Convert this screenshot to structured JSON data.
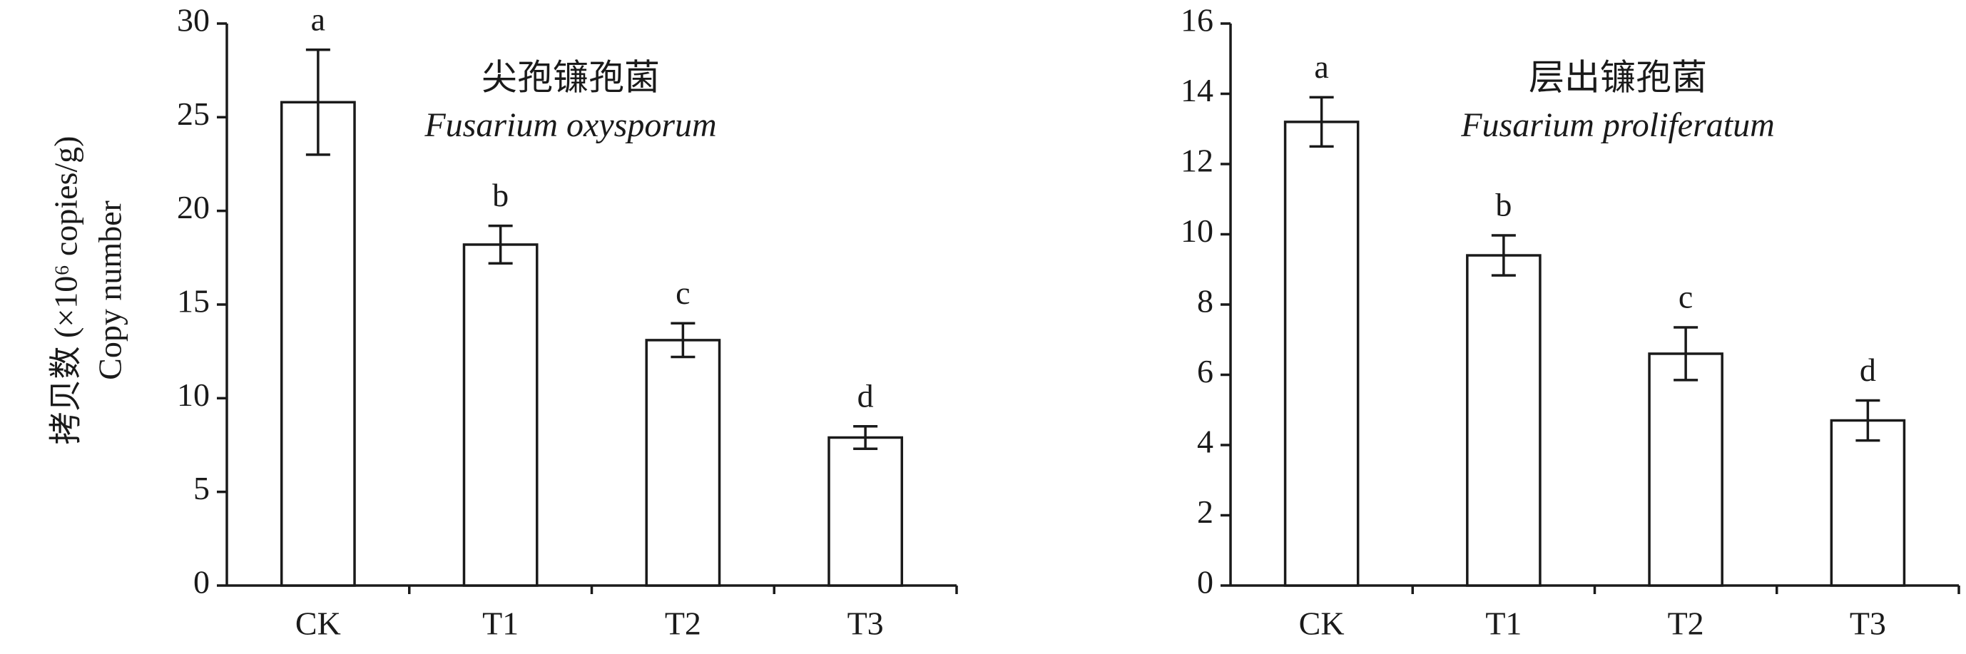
{
  "chart_data": [
    {
      "type": "bar",
      "title": "尖孢镰孢菌",
      "subtitle": "Fusarium oxysporum",
      "ylabel": [
        "拷贝数 (×10⁶ copies/g)",
        "Copy number"
      ],
      "categories": [
        "CK",
        "T1",
        "T2",
        "T3"
      ],
      "values": [
        25.8,
        18.2,
        13.1,
        7.9
      ],
      "errors": [
        2.8,
        1.0,
        0.9,
        0.6
      ],
      "significance": [
        "a",
        "b",
        "c",
        "d"
      ],
      "color": "#ffffff",
      "ylim": [
        0,
        30
      ],
      "yticks": [
        0,
        5,
        10,
        15,
        20,
        25,
        30
      ]
    },
    {
      "type": "bar",
      "title": "层出镰孢菌",
      "subtitle": "Fusarium proliferatum",
      "categories": [
        "CK",
        "T1",
        "T2",
        "T3"
      ],
      "values": [
        13.2,
        9.4,
        6.6,
        4.7
      ],
      "errors": [
        0.7,
        0.57,
        0.75,
        0.57
      ],
      "significance": [
        "a",
        "b",
        "c",
        "d"
      ],
      "color": "#ffffff",
      "ylim": [
        0,
        16
      ],
      "yticks": [
        0,
        2,
        4,
        6,
        8,
        10,
        12,
        14,
        16
      ]
    }
  ]
}
